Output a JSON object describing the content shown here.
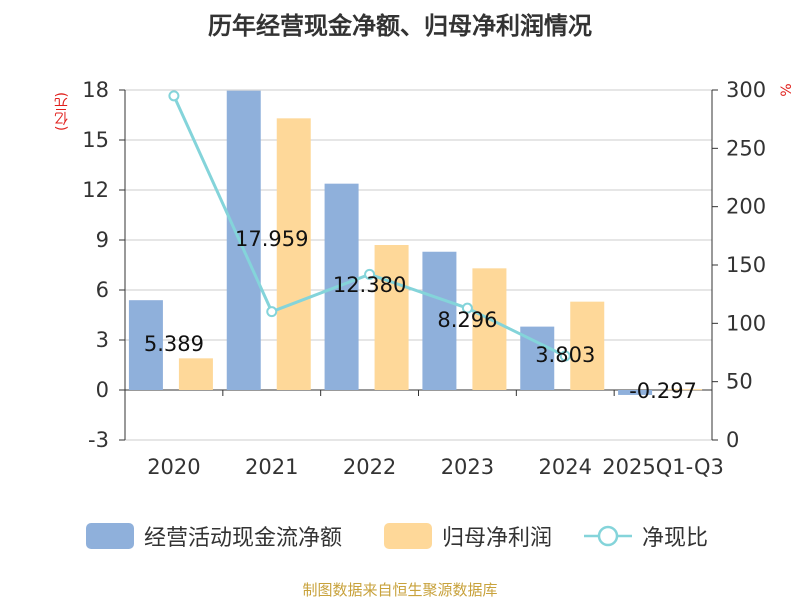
{
  "chart_data": {
    "type": "bar",
    "title": "历年经营现金净额、归母净利润情况",
    "categories": [
      "2020",
      "2021",
      "2022",
      "2023",
      "2024",
      "2025Q1-Q3"
    ],
    "series": [
      {
        "name": "经营活动现金流净额",
        "type": "bar",
        "axis": "left",
        "values": [
          5.389,
          17.959,
          12.38,
          8.296,
          3.803,
          -0.297
        ],
        "color": "#8fb0db"
      },
      {
        "name": "归母净利润",
        "type": "bar",
        "axis": "left",
        "values": [
          1.9,
          16.3,
          8.7,
          7.3,
          5.3,
          0.05
        ],
        "color": "#fed899"
      },
      {
        "name": "净现比",
        "type": "line",
        "axis": "right",
        "values": [
          295,
          110,
          142,
          113,
          72,
          null
        ],
        "color": "#84d4da"
      }
    ],
    "data_labels": [
      "5.389",
      "17.959",
      "12.380",
      "8.296",
      "3.803",
      "-0.297"
    ],
    "y_left": {
      "label": "(亿元)",
      "min": -3,
      "max": 18,
      "ticks": [
        "18",
        "15",
        "12",
        "9",
        "6",
        "3",
        "0",
        "-3"
      ]
    },
    "y_right": {
      "label": "%",
      "min": 0,
      "max": 300,
      "ticks": [
        "300",
        "250",
        "200",
        "150",
        "100",
        "50",
        "0"
      ]
    },
    "grid": true,
    "legend_position": "bottom"
  },
  "legend": {
    "items": [
      {
        "label": "经营活动现金流净额",
        "color": "#8fb0db"
      },
      {
        "label": "归母净利润",
        "color": "#fed899"
      },
      {
        "label": "净现比",
        "color": "#84d4da"
      }
    ]
  },
  "source_text": "制图数据来自恒生聚源数据库",
  "colors": {
    "grid": "#cccccc",
    "axis": "#333333",
    "unit": "#e0201c",
    "source": "#c8a23c"
  }
}
